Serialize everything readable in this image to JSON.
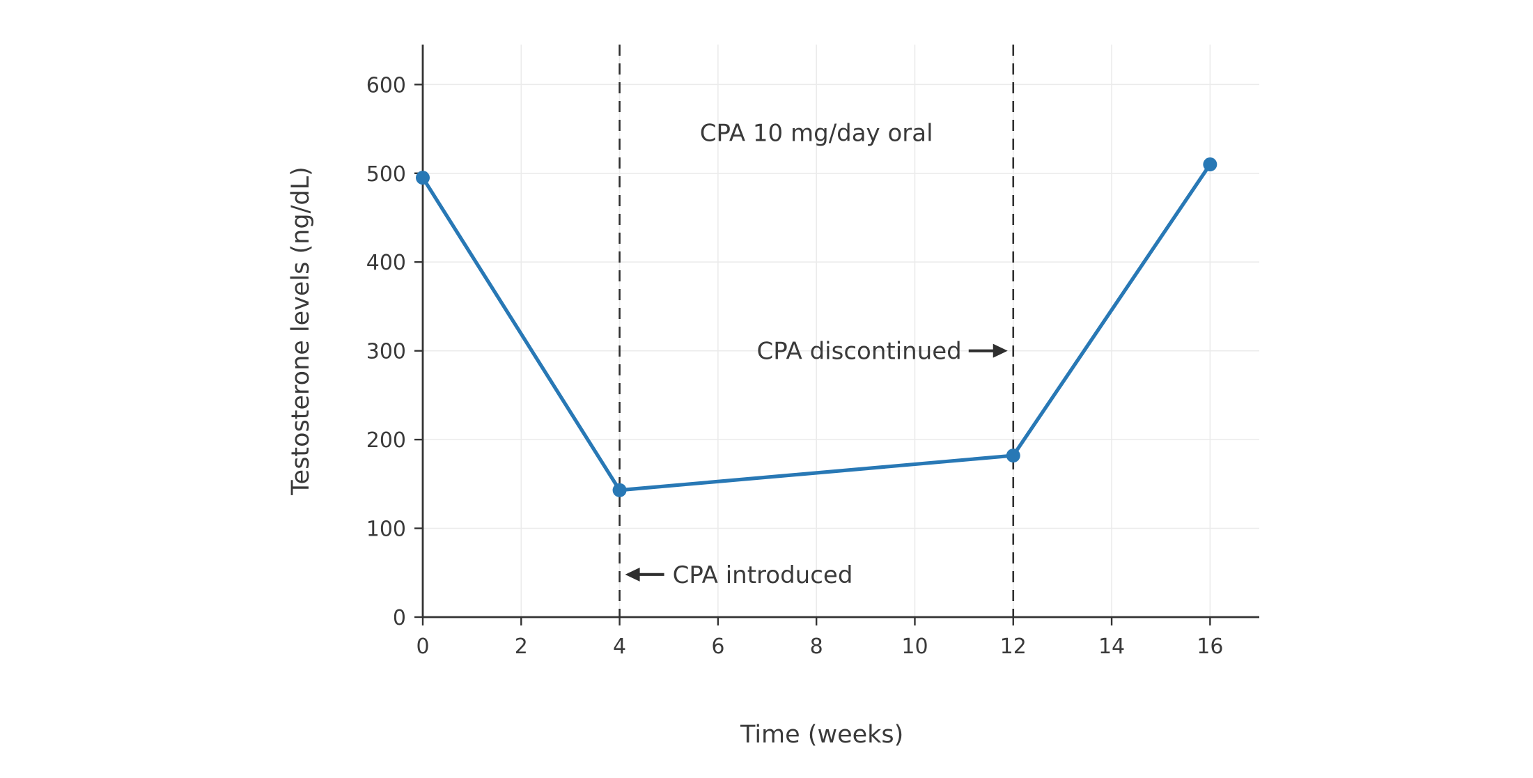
{
  "page": {
    "background": "#ffffff"
  },
  "chart_data": {
    "type": "line",
    "title": "",
    "xlabel": "Time (weeks)",
    "ylabel": "Testosterone levels (ng/dL)",
    "x": [
      0,
      4,
      12,
      16
    ],
    "y": [
      495,
      143,
      182,
      510
    ],
    "xlim": [
      0,
      17
    ],
    "ylim": [
      0,
      645
    ],
    "xticks": [
      0,
      2,
      4,
      6,
      8,
      10,
      12,
      14,
      16
    ],
    "yticks": [
      0,
      100,
      200,
      300,
      400,
      500,
      600
    ],
    "grid": true,
    "legend": null,
    "line_color": "#2878b5",
    "marker_color": "#2878b5",
    "axis_color": "#333333",
    "grid_color": "#ebebeb",
    "dashed_line_color": "#2f2f2f",
    "text_color": "#3a3a3a",
    "vlines": [
      {
        "x": 4,
        "style": "dashed",
        "meaning": "CPA introduced"
      },
      {
        "x": 12,
        "style": "dashed",
        "meaning": "CPA discontinued"
      }
    ],
    "annotations": [
      {
        "id": "dose",
        "text": "CPA 10 mg/day oral",
        "x": 8,
        "y": 545,
        "arrow": "none"
      },
      {
        "id": "discontinued",
        "text": "CPA discontinued",
        "x": 12,
        "y": 300,
        "arrow": "right"
      },
      {
        "id": "introduced",
        "text": "CPA introduced",
        "x": 4,
        "y": 48,
        "arrow": "left"
      }
    ]
  }
}
